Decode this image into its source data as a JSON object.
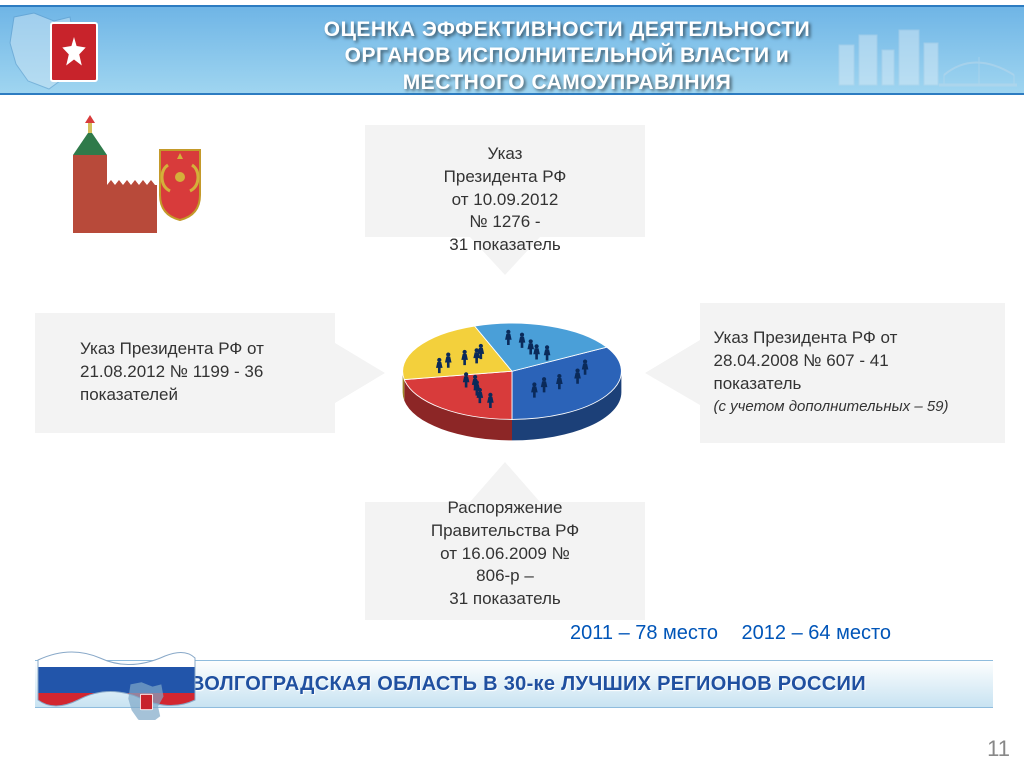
{
  "header": {
    "title_line1": "ОЦЕНКА ЭФФЕКТИВНОСТИ ДЕЯТЕЛЬНОСТИ",
    "title_line2": "ОРГАНОВ ИСПОЛНИТЕЛЬНОЙ ВЛАСТИ и",
    "title_line3": "МЕСТНОГО САМОУПРАВЛНИЯ",
    "band_gradient_top": "#6fb5e6",
    "band_gradient_bottom": "#9fd5f0",
    "title_color": "#ffffff",
    "title_fontsize": 21
  },
  "boxes": {
    "top": {
      "text": "Указ\nПрезидента РФ\nот 10.09.2012\n№ 1276  -\n31 показатель"
    },
    "left": {
      "text": "Указ Президента РФ от 21.08.2012 № 1199   - 36  показателей"
    },
    "right": {
      "text": "Указ Президента РФ от 28.04.2008 № 607  - 41 показатель",
      "note": "(с учетом дополнительных – 59)"
    },
    "bottom": {
      "text": "Распоряжение\nПравительства РФ\nот 16.06.2009 №\n806-р –\n31 показатель"
    },
    "fill": "#f3f3f3",
    "text_color": "#333333",
    "fontsize": 17
  },
  "pie": {
    "slices": [
      {
        "color": "#2b63b8",
        "angle": 120
      },
      {
        "color": "#d83b3b",
        "angle": 80
      },
      {
        "color": "#f3d03c",
        "angle": 80
      },
      {
        "color": "#4a9fd8",
        "angle": 80
      }
    ],
    "depth_color_shift": 0.65
  },
  "ranking": {
    "item1": "2011 – 78 место",
    "item2": "2012 – 64 место",
    "color": "#0055b8",
    "fontsize": 20
  },
  "footer": {
    "text": "ВОЛГОГРАДСКАЯ ОБЛАСТЬ В 30-ке ЛУЧШИХ РЕГИОНОВ РОССИИ",
    "text_color": "#2050a0",
    "fontsize": 20,
    "band_top": "#fdfefe",
    "band_bottom": "#c8e3f2"
  },
  "page_number": "11",
  "emblem": {
    "bg": "#c8232b"
  },
  "flag_colors": {
    "white": "#ffffff",
    "blue": "#2255aa",
    "red": "#d22630"
  }
}
